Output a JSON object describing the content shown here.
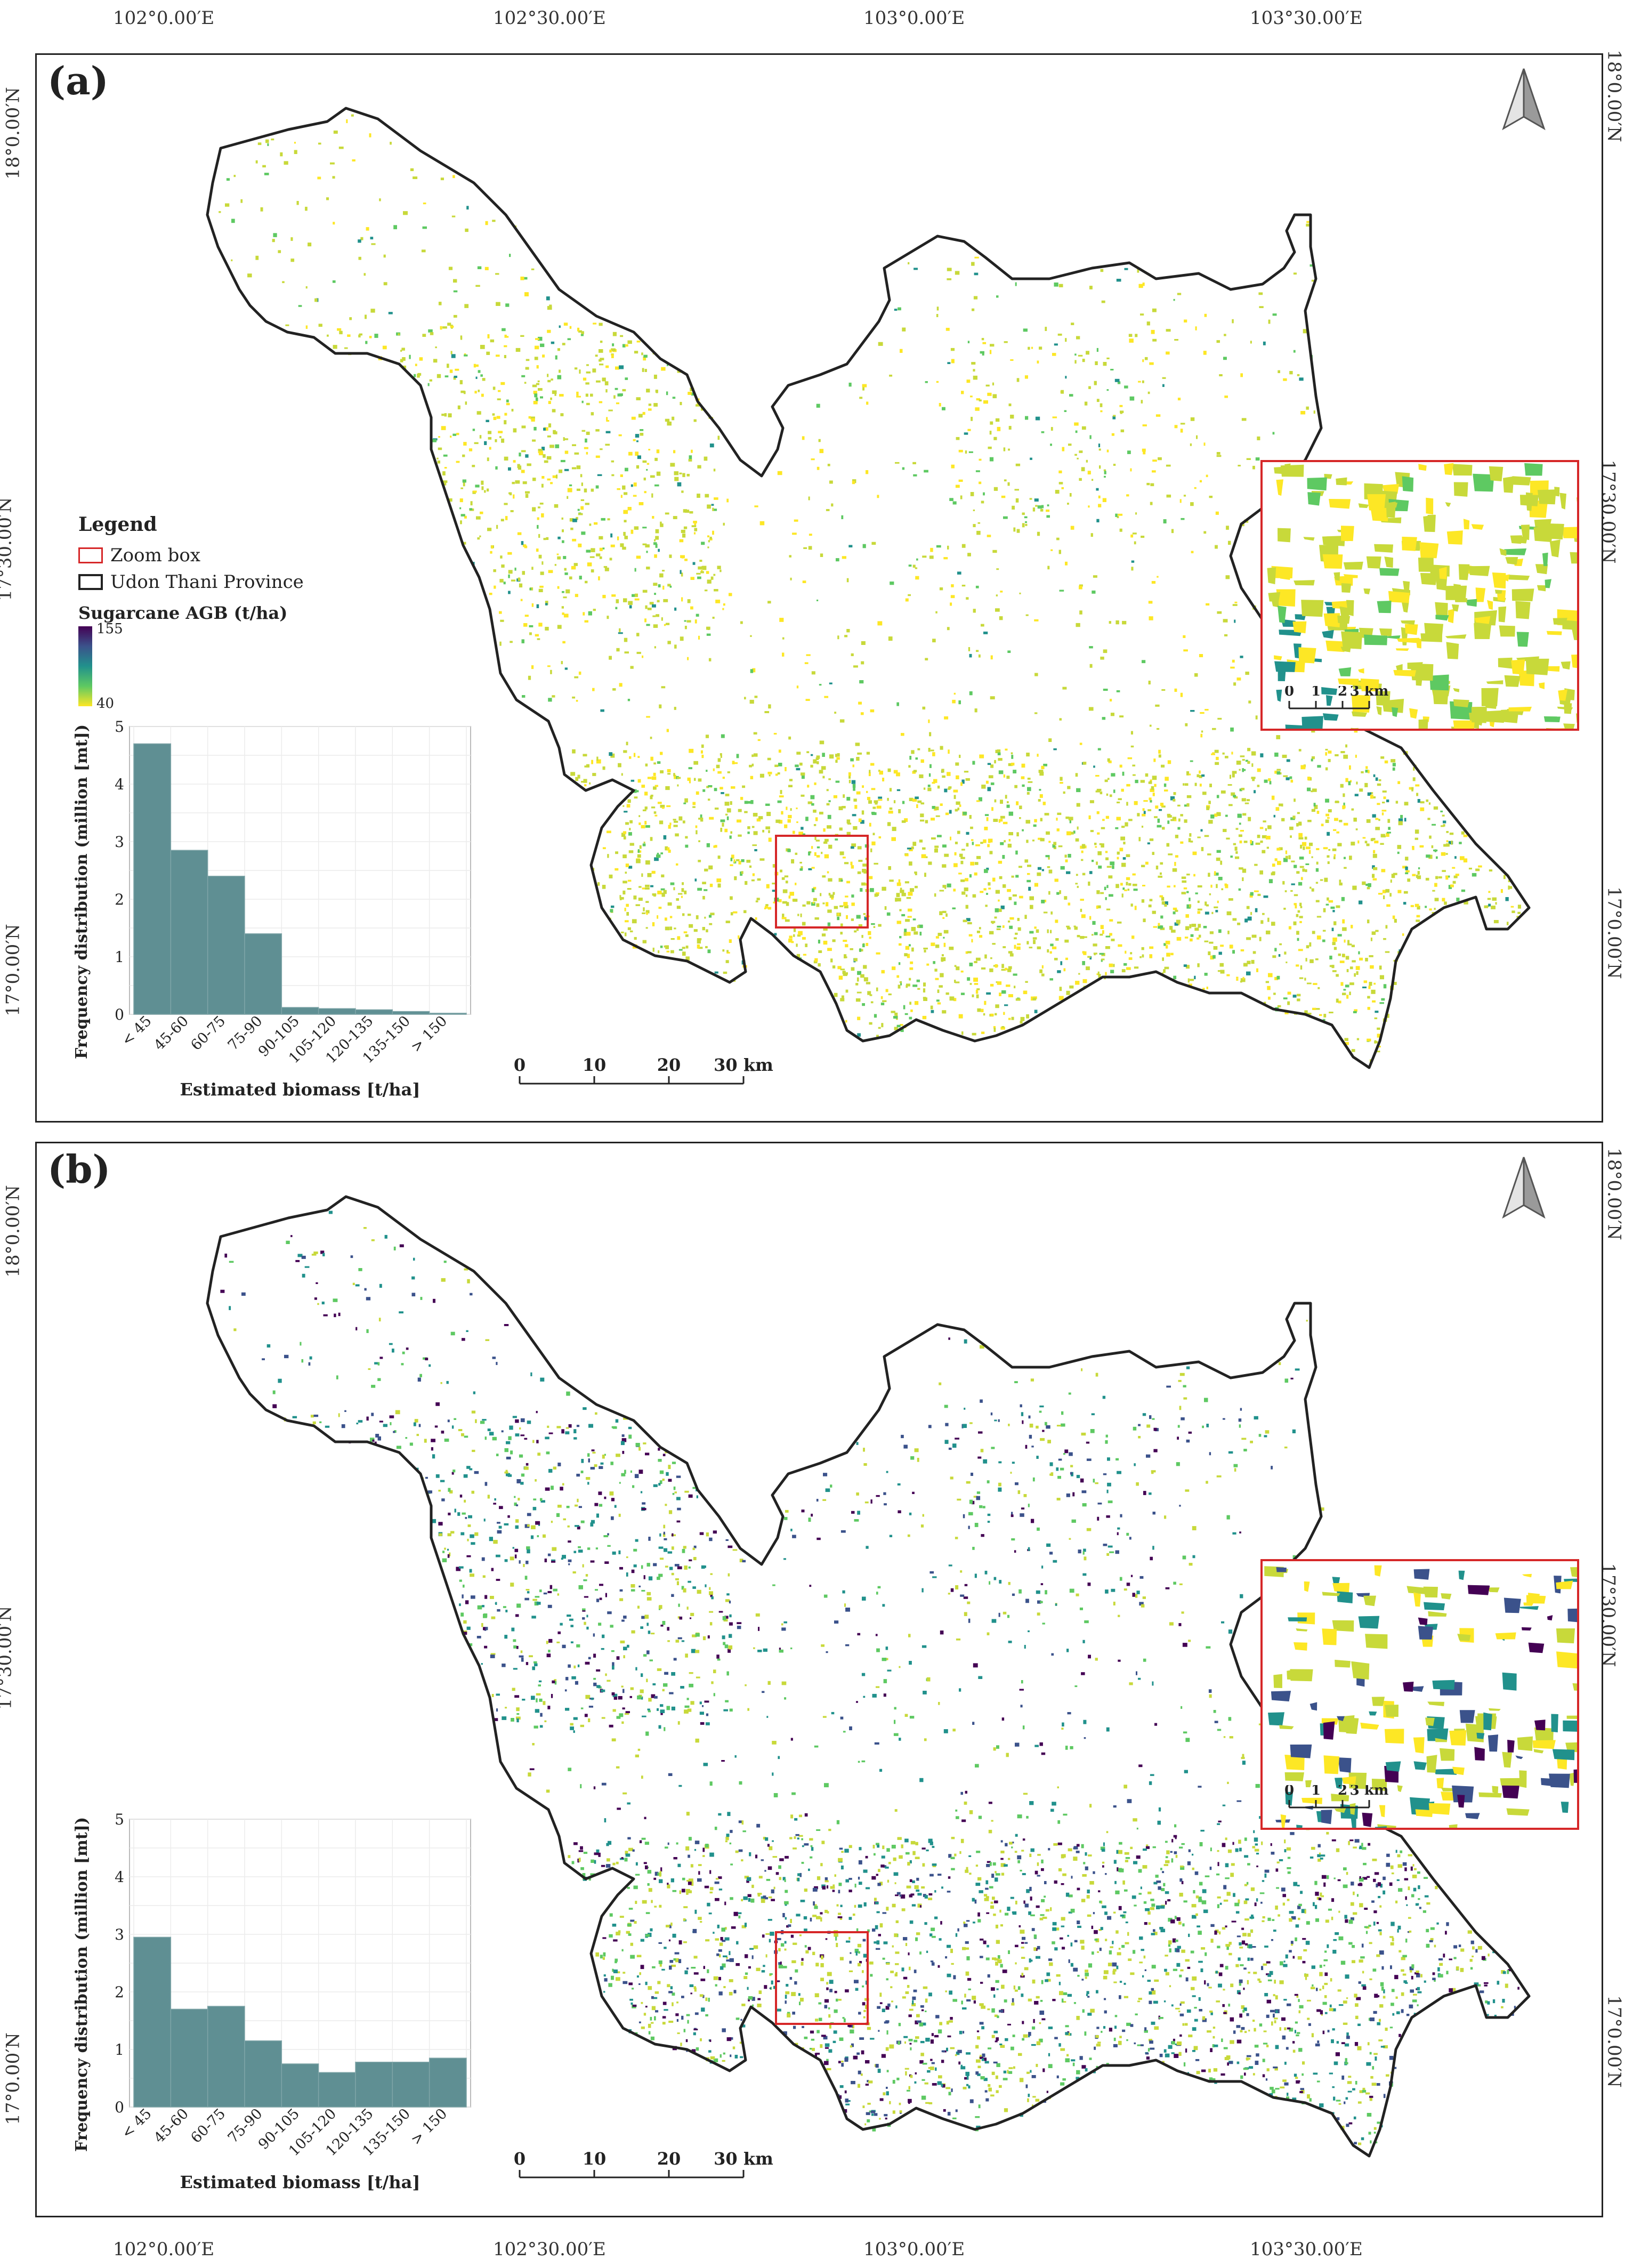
{
  "graticule": {
    "top_longitudes": [
      "102°0.00′E",
      "102°30.00′E",
      "103°0.00′E",
      "103°30.00′E"
    ],
    "bottom_longitudes": [
      "102°0.00′E",
      "102°30.00′E",
      "103°0.00′E",
      "103°30.00′E"
    ],
    "panel_a_latitudes": [
      "18°0.00′N",
      "17°30.00′N",
      "17°0.00′N"
    ],
    "panel_b_latitudes": [
      "18°0.00′N",
      "17°30.00′N",
      "17°0.00′N"
    ]
  },
  "panels": [
    {
      "label": "(a)",
      "legend": {
        "title": "Legend",
        "zoom_box": "Zoom box",
        "province": "Udon Thani Province",
        "colorbar_title": "Sugarcane AGB (t/ha)",
        "colorbar_max": "155",
        "colorbar_min": "40"
      },
      "scalebar": {
        "labels": [
          "0",
          "10",
          "20",
          "30 km"
        ]
      },
      "inset_scalebar": {
        "labels": [
          "0",
          "1",
          "2",
          "3 km"
        ]
      }
    },
    {
      "label": "(b)",
      "scalebar": {
        "labels": [
          "0",
          "10",
          "20",
          "30 km"
        ]
      },
      "inset_scalebar": {
        "labels": [
          "0",
          "1",
          "2",
          "3 km"
        ]
      }
    }
  ],
  "colors": {
    "bar": "#5f8f93",
    "zoom_box": "#d62728",
    "boundary": "#222222",
    "viridis": [
      "#440154",
      "#3b528b",
      "#21918c",
      "#5ec962",
      "#c8d93a",
      "#fde725"
    ]
  },
  "chart_data": [
    {
      "type": "bar",
      "panel": "(a)",
      "categories": [
        "< 45",
        "45-60",
        "60-75",
        "75-90",
        "90-105",
        "105-120",
        "120-135",
        "135-150",
        "> 150"
      ],
      "values": [
        4.7,
        2.85,
        2.4,
        1.4,
        0.12,
        0.1,
        0.08,
        0.05,
        0.02
      ],
      "xlabel": "Estimated biomass [t/ha]",
      "ylabel": "Frequency distribution (million [mt])",
      "yticks": [
        "0",
        "1",
        "2",
        "3",
        "4",
        "5"
      ],
      "ylim": [
        0,
        5
      ],
      "grid": true
    },
    {
      "type": "bar",
      "panel": "(b)",
      "categories": [
        "< 45",
        "45-60",
        "60-75",
        "75-90",
        "90-105",
        "105-120",
        "120-135",
        "135-150",
        "> 150"
      ],
      "values": [
        2.95,
        1.7,
        1.75,
        1.15,
        0.75,
        0.6,
        0.78,
        0.78,
        0.85
      ],
      "xlabel": "Estimated biomass [t/ha]",
      "ylabel": "Frequency distribution (million [mt])",
      "yticks": [
        "0",
        "1",
        "2",
        "3",
        "4",
        "5"
      ],
      "ylim": [
        0,
        5
      ],
      "grid": true
    }
  ]
}
